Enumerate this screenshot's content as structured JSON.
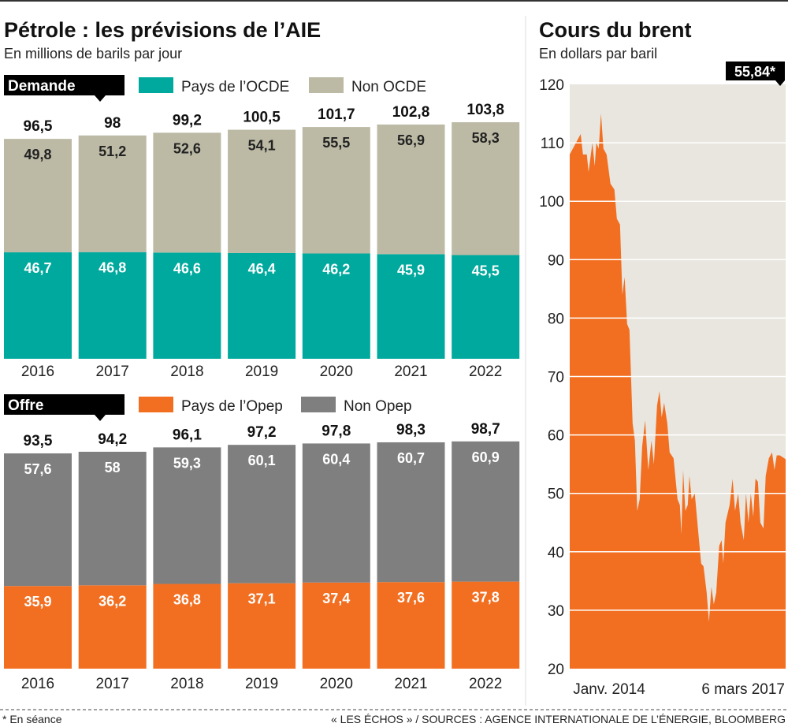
{
  "colors": {
    "ocde": "#00a99d",
    "non_ocde": "#bcbaa5",
    "opep": "#f26f21",
    "non_opep": "#7f7f7f",
    "brent_fill": "#f26f21",
    "brent_bg": "#e8e6df"
  },
  "left": {
    "title": "Pétrole :  les prévisions de l’AIE",
    "subtitle": "En millions de barils par jour"
  },
  "right": {
    "title": "Cours du brent",
    "subtitle": "En dollars par baril",
    "callout": "55,84*"
  },
  "footer": {
    "note": "* En séance",
    "source": "« LES ÉCHOS » / SOURCES : AGENCE INTERNATIONALE DE L’ÉNERGIE, BLOOMBERG"
  },
  "chart_data": [
    {
      "type": "bar",
      "stacked": true,
      "label": "Demande",
      "categories": [
        "2016",
        "2017",
        "2018",
        "2019",
        "2020",
        "2021",
        "2022"
      ],
      "series": [
        {
          "name": "Pays de l’OCDE",
          "values": [
            46.7,
            46.8,
            46.6,
            46.4,
            46.2,
            45.9,
            45.5
          ],
          "labels": [
            "46,7",
            "46,8",
            "46,6",
            "46,4",
            "46,2",
            "45,9",
            "45,5"
          ]
        },
        {
          "name": "Non OCDE",
          "values": [
            49.8,
            51.2,
            52.6,
            54.1,
            55.5,
            56.9,
            58.3
          ],
          "labels": [
            "49,8",
            "51,2",
            "52,6",
            "54,1",
            "55,5",
            "56,9",
            "58,3"
          ]
        }
      ],
      "totals": [
        96.5,
        98,
        99.2,
        100.5,
        101.7,
        102.8,
        103.8
      ],
      "total_labels": [
        "96,5",
        "98",
        "99,2",
        "100,5",
        "101,7",
        "102,8",
        "103,8"
      ]
    },
    {
      "type": "bar",
      "stacked": true,
      "label": "Offre",
      "categories": [
        "2016",
        "2017",
        "2018",
        "2019",
        "2020",
        "2021",
        "2022"
      ],
      "series": [
        {
          "name": "Pays de l’Opep",
          "values": [
            35.9,
            36.2,
            36.8,
            37.1,
            37.4,
            37.6,
            37.8
          ],
          "labels": [
            "35,9",
            "36,2",
            "36,8",
            "37,1",
            "37,4",
            "37,6",
            "37,8"
          ]
        },
        {
          "name": "Non Opep",
          "values": [
            57.6,
            58,
            59.3,
            60.1,
            60.4,
            60.7,
            60.9
          ],
          "labels": [
            "57,6",
            "58",
            "59,3",
            "60,1",
            "60,4",
            "60,7",
            "60,9"
          ]
        }
      ],
      "totals": [
        93.5,
        94.2,
        96.1,
        97.2,
        97.8,
        98.3,
        98.7
      ],
      "total_labels": [
        "93,5",
        "94,2",
        "96,1",
        "97,2",
        "97,8",
        "98,3",
        "98,7"
      ]
    },
    {
      "type": "area",
      "title": "Cours du brent",
      "ylim": [
        20,
        120
      ],
      "yticks": [
        "120",
        "110",
        "100",
        "90",
        "80",
        "70",
        "60",
        "50",
        "40",
        "30",
        "20"
      ],
      "xlim": [
        "2014-01-01",
        "2017-03-06"
      ],
      "xtick_labels": [
        "Janv. 2014",
        "6 mars 2017"
      ],
      "grid": true,
      "points": [
        [
          "2014-01-01",
          108
        ],
        [
          "2014-02-12",
          110.5
        ],
        [
          "2014-03-01",
          111.5
        ],
        [
          "2014-03-13",
          108
        ],
        [
          "2014-04-03",
          108
        ],
        [
          "2014-04-12",
          105
        ],
        [
          "2014-05-03",
          110
        ],
        [
          "2014-05-15",
          106
        ],
        [
          "2014-05-24",
          110
        ],
        [
          "2014-06-06",
          109
        ],
        [
          "2014-06-18",
          115
        ],
        [
          "2014-07-01",
          109
        ],
        [
          "2014-07-18",
          108
        ],
        [
          "2014-08-08",
          103
        ],
        [
          "2014-08-29",
          102
        ],
        [
          "2014-09-11",
          97
        ],
        [
          "2014-09-28",
          96
        ],
        [
          "2014-10-11",
          84
        ],
        [
          "2014-10-23",
          87
        ],
        [
          "2014-11-05",
          79
        ],
        [
          "2014-11-18",
          78
        ],
        [
          "2014-12-05",
          62
        ],
        [
          "2014-12-17",
          59
        ],
        [
          "2014-12-30",
          47
        ],
        [
          "2015-01-12",
          49
        ],
        [
          "2015-01-25",
          58
        ],
        [
          "2015-02-10",
          62.5
        ],
        [
          "2015-02-27",
          54
        ],
        [
          "2015-03-16",
          59
        ],
        [
          "2015-03-29",
          55
        ],
        [
          "2015-04-15",
          65
        ],
        [
          "2015-04-28",
          67.5
        ],
        [
          "2015-05-10",
          63
        ],
        [
          "2015-05-23",
          65.5
        ],
        [
          "2015-06-09",
          62
        ],
        [
          "2015-06-22",
          57
        ],
        [
          "2015-07-13",
          56
        ],
        [
          "2015-08-03",
          49
        ],
        [
          "2015-08-16",
          48
        ],
        [
          "2015-08-24",
          43
        ],
        [
          "2015-09-02",
          54
        ],
        [
          "2015-09-14",
          47
        ],
        [
          "2015-09-27",
          48
        ],
        [
          "2015-10-06",
          53
        ],
        [
          "2015-10-18",
          49
        ],
        [
          "2015-11-04",
          50
        ],
        [
          "2015-11-21",
          44
        ],
        [
          "2015-12-08",
          38
        ],
        [
          "2015-12-21",
          37.5
        ],
        [
          "2016-01-07",
          33
        ],
        [
          "2016-01-19",
          28
        ],
        [
          "2016-02-01",
          34
        ],
        [
          "2016-02-14",
          31
        ],
        [
          "2016-02-27",
          33
        ],
        [
          "2016-03-14",
          41
        ],
        [
          "2016-03-27",
          42
        ],
        [
          "2016-04-05",
          38
        ],
        [
          "2016-04-17",
          45
        ],
        [
          "2016-05-09",
          48
        ],
        [
          "2016-05-25",
          52.5
        ],
        [
          "2016-06-07",
          47
        ],
        [
          "2016-06-24",
          50
        ],
        [
          "2016-07-07",
          45
        ],
        [
          "2016-07-24",
          42
        ],
        [
          "2016-08-05",
          50
        ],
        [
          "2016-08-18",
          45
        ],
        [
          "2016-08-31",
          50
        ],
        [
          "2016-09-13",
          46
        ],
        [
          "2016-09-25",
          52.5
        ],
        [
          "2016-10-08",
          52
        ],
        [
          "2016-10-21",
          45
        ],
        [
          "2016-11-07",
          44
        ],
        [
          "2016-11-19",
          53
        ],
        [
          "2016-12-06",
          56
        ],
        [
          "2016-12-23",
          57
        ],
        [
          "2017-01-05",
          54
        ],
        [
          "2017-01-17",
          56.5
        ],
        [
          "2017-02-03",
          56.5
        ],
        [
          "2017-03-06",
          55.84
        ]
      ]
    }
  ]
}
